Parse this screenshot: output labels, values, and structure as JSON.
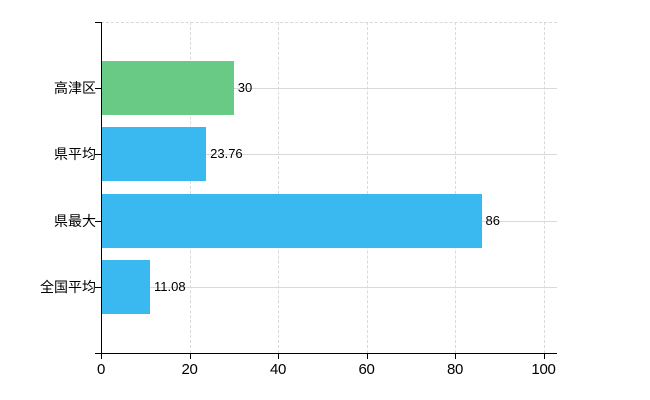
{
  "chart": {
    "background": "#ffffff",
    "axis_color": "#000000",
    "grid_color": "#d9d9d9",
    "label_color": "#000000"
  },
  "chart_data": {
    "type": "bar",
    "orientation": "horizontal",
    "title": "",
    "xlabel": "",
    "ylabel": "",
    "categories": [
      "高津区",
      "県平均",
      "県最大",
      "全国平均"
    ],
    "values": [
      30,
      23.76,
      86,
      11.08
    ],
    "value_labels": [
      "30",
      "23.76",
      "86",
      "11.08"
    ],
    "bar_colors": [
      "#69ca85",
      "#3ab8f0",
      "#3ab8f0",
      "#3ab8f0"
    ],
    "xlim": [
      0,
      100
    ],
    "x_ticks": [
      0,
      20,
      40,
      60,
      80,
      100
    ],
    "x_tick_labels": [
      "0",
      "20",
      "40",
      "60",
      "80",
      "100"
    ],
    "grid": "on",
    "grid_style": {
      "vertical": "dashed",
      "horizontal": "solid",
      "top_border": "dashed"
    },
    "legend": "none"
  }
}
